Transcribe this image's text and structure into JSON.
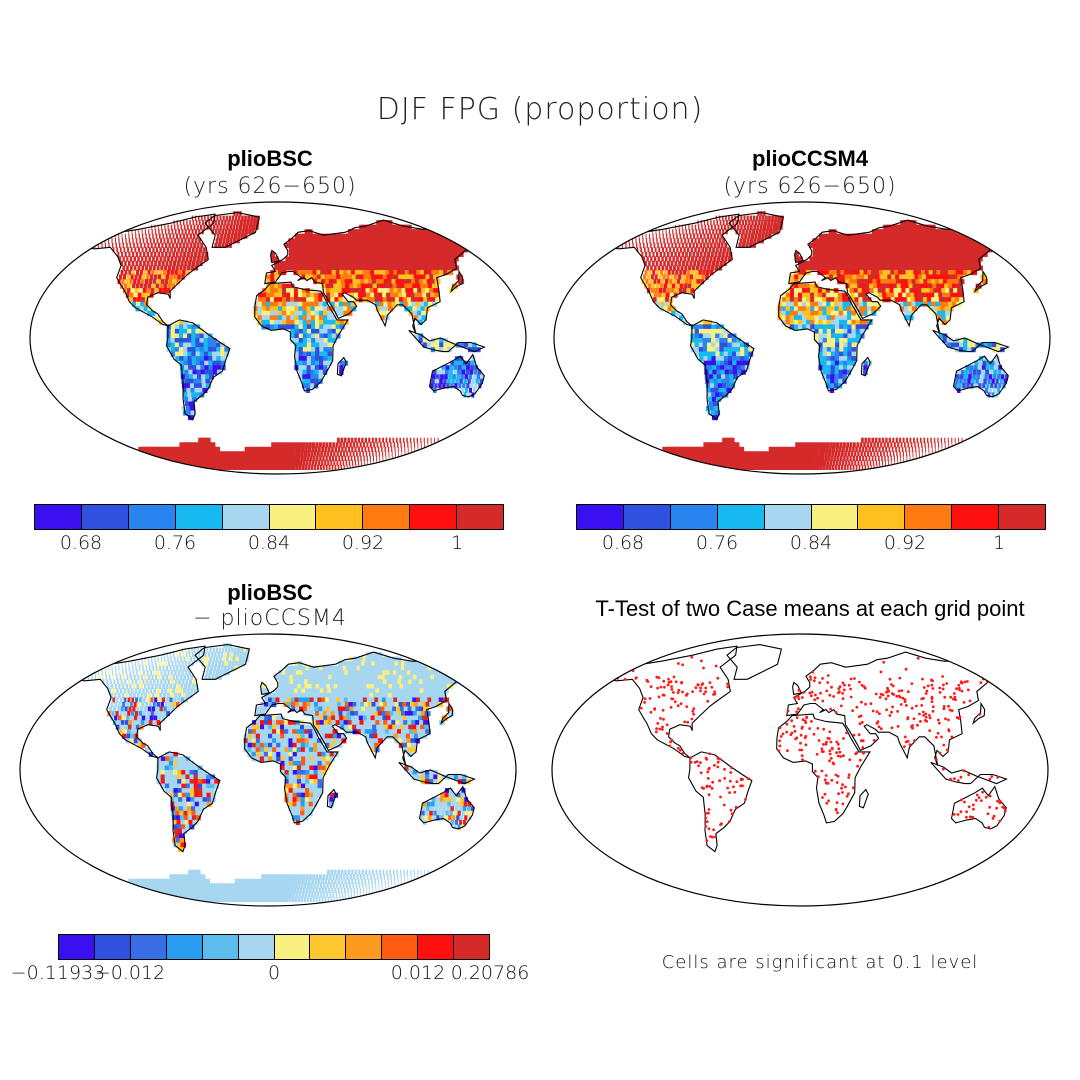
{
  "figure": {
    "title": "DJF FPG (proportion)"
  },
  "panels": [
    {
      "id": "plioBSC",
      "title": "plioBSC",
      "subtitle": "(yrs 626−650)",
      "colorbar": {
        "colors": [
          "#3a10f0",
          "#3050e0",
          "#2a84f0",
          "#18b8f0",
          "#a6d6f0",
          "#f8f080",
          "#ffc020",
          "#ff7a10",
          "#ff1010",
          "#d42a2a"
        ],
        "tick_labels": [
          "0.68",
          "0.76",
          "0.84",
          "0.92",
          "1"
        ]
      }
    },
    {
      "id": "plioCCSM4",
      "title": "plioCCSM4",
      "subtitle": "(yrs 626−650)",
      "colorbar": {
        "colors": [
          "#3a10f0",
          "#3050e0",
          "#2a84f0",
          "#18b8f0",
          "#a6d6f0",
          "#f8f080",
          "#ffc020",
          "#ff7a10",
          "#ff1010",
          "#d42a2a"
        ],
        "tick_labels": [
          "0.68",
          "0.76",
          "0.84",
          "0.92",
          "1"
        ]
      }
    },
    {
      "id": "difference",
      "title": "plioBSC",
      "subtitle": "− plioCCSM4",
      "colorbar": {
        "colors": [
          "#3a10f0",
          "#3050e0",
          "#3a6ee6",
          "#2a9cf0",
          "#5cbcec",
          "#a6d6f0",
          "#f8f080",
          "#ffc830",
          "#ff9a20",
          "#ff5a10",
          "#ff1010",
          "#d42a2a"
        ],
        "tick_labels": [
          "−0.11933",
          "−0.012",
          "0",
          "0.012",
          "0.20786"
        ]
      }
    },
    {
      "id": "ttest",
      "title": "T-Test of two Case means at each grid point",
      "note": "Cells are significant at 0.1 level",
      "marker_color": "#ff1a1a"
    }
  ]
}
